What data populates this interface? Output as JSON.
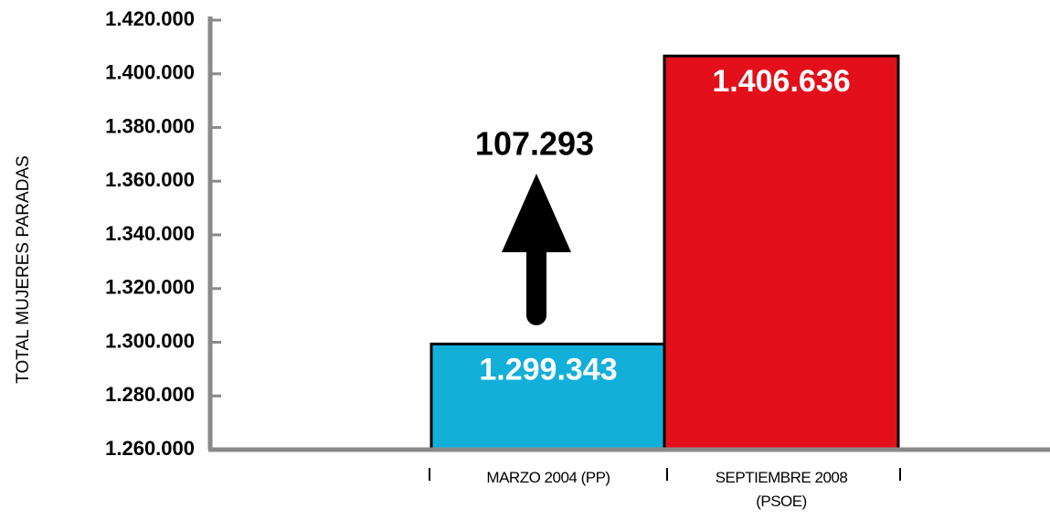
{
  "chart_data": {
    "type": "bar",
    "y_axis_label": "TOTAL MUJERES PARADAS",
    "categories": [
      "MARZO 2004 (PP)",
      "SEPTIEMBRE 2008 (PSOE)"
    ],
    "values": [
      1299343,
      1406636
    ],
    "value_labels": [
      "1.299.343",
      "1.406.636"
    ],
    "colors": [
      "#12afd9",
      "#e30f1a"
    ],
    "annotation": "107.293",
    "ylim": [
      1260000,
      1420000
    ],
    "yticks": [
      {
        "value": 1260000,
        "label": "1.260.000"
      },
      {
        "value": 1280000,
        "label": "1.280.000"
      },
      {
        "value": 1300000,
        "label": "1.300.000"
      },
      {
        "value": 1320000,
        "label": "1.320.000"
      },
      {
        "value": 1340000,
        "label": "1.340.000"
      },
      {
        "value": 1360000,
        "label": "1.360.000"
      },
      {
        "value": 1380000,
        "label": "1.380.000"
      },
      {
        "value": 1400000,
        "label": "1.400.000"
      },
      {
        "value": 1420000,
        "label": "1.420.000"
      }
    ]
  }
}
